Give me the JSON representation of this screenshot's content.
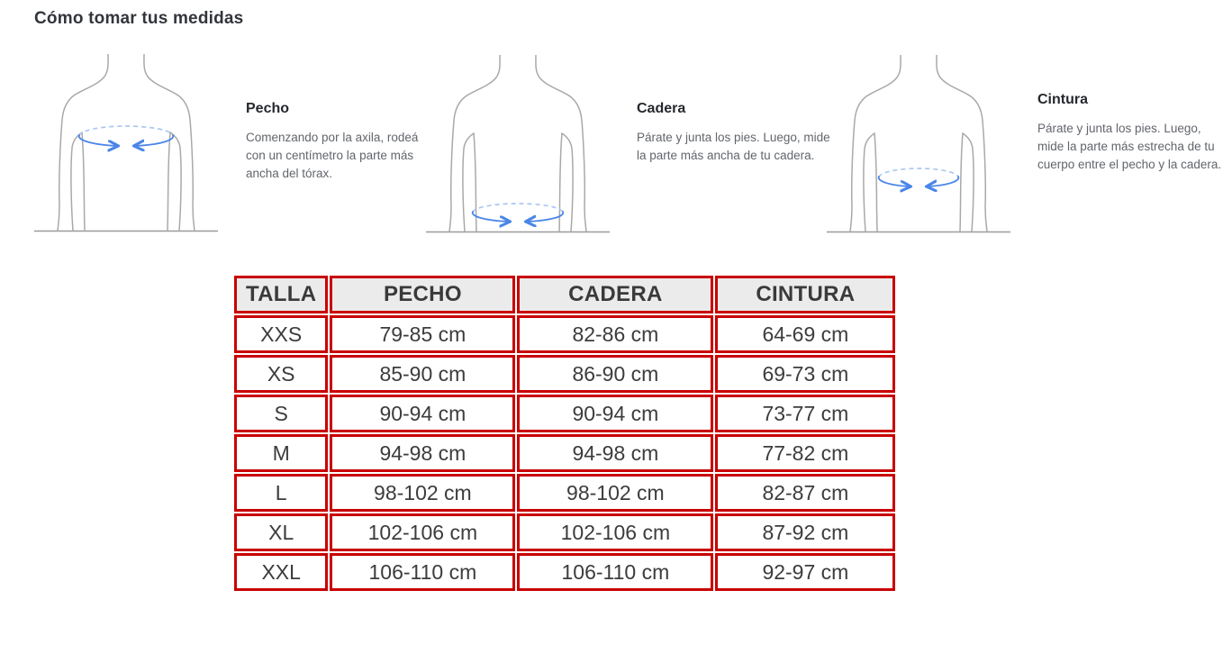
{
  "page": {
    "title": "Cómo tomar tus medidas"
  },
  "colors": {
    "table_border_red": "#c90000",
    "table_header_bg": "#ebebeb",
    "measure_blue_solid": "#4a86e8",
    "measure_blue_dashed": "#a9c7f2",
    "body_outline_gray": "#a9a9a9",
    "text_dark": "#32353b",
    "text_muted": "#62656c"
  },
  "sections": [
    {
      "heading": "Pecho",
      "description": "Comenzando por la axila, rodeá con un centímetro la parte más ancha del tórax.",
      "illustration": "torso-chest-measure-illustration"
    },
    {
      "heading": "Cadera",
      "description": "Párate y junta los pies. Luego, mide la parte más ancha de tu cadera.",
      "illustration": "torso-hip-measure-illustration"
    },
    {
      "heading": "Cintura",
      "description": "Párate y junta los pies. Luego, mide la parte más estrecha de tu cuerpo entre el pecho y la cadera.",
      "illustration": "torso-waist-measure-illustration"
    }
  ],
  "size_table": {
    "headers": [
      "TALLA",
      "PECHO",
      "CADERA",
      "CINTURA"
    ],
    "rows": [
      [
        "XXS",
        "79-85 cm",
        "82-86 cm",
        "64-69 cm"
      ],
      [
        "XS",
        "85-90 cm",
        "86-90 cm",
        "69-73 cm"
      ],
      [
        "S",
        "90-94 cm",
        "90-94 cm",
        "73-77 cm"
      ],
      [
        "M",
        "94-98 cm",
        "94-98 cm",
        "77-82 cm"
      ],
      [
        "L",
        "98-102 cm",
        "98-102 cm",
        "82-87 cm"
      ],
      [
        "XL",
        "102-106 cm",
        "102-106 cm",
        "87-92 cm"
      ],
      [
        "XXL",
        "106-110 cm",
        "106-110 cm",
        "92-97 cm"
      ]
    ]
  }
}
